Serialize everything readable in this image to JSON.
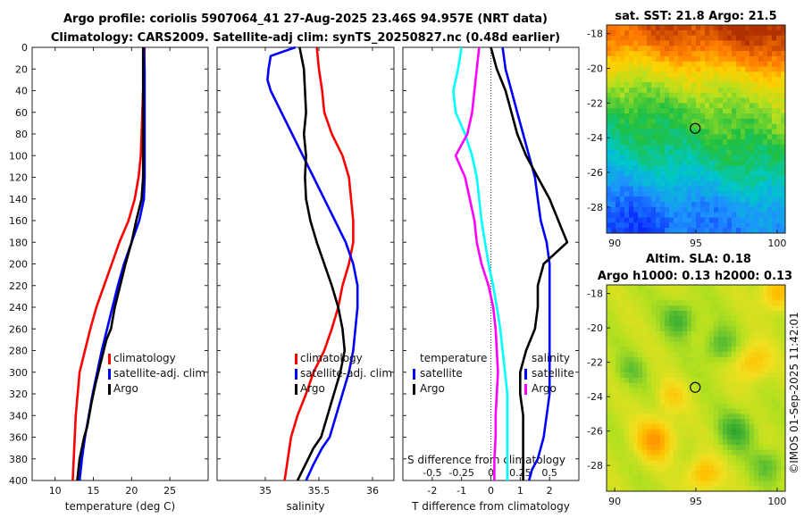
{
  "title_line1": "Argo profile: coriolis 5907064_41 27-Aug-2025 23.46S 94.957E (NRT data)",
  "title_line2": "Climatology: CARS2009. Satellite-adj clim: synTS_20250827.nc (0.48d earlier)",
  "sst_title": "sat. SST: 21.8 Argo: 21.5",
  "sla_title1": "Altim. SLA: 0.18",
  "sla_title2": "Argo h1000: 0.13 h2000: 0.13",
  "credit": "©IMOS 01-Sep-2025 11:42:01",
  "colors": {
    "climatology": "#ff0000",
    "satellite": "#0000ff",
    "argo": "#000000",
    "t_diff": "#00ffff",
    "s_diff": "#ff00ff"
  },
  "chart_data": [
    {
      "type": "line",
      "xlabel": "temperature (deg C)",
      "ylabel": "",
      "xlim": [
        7,
        30
      ],
      "ylim": [
        400,
        0
      ],
      "xticks": [
        "10",
        "15",
        "20",
        "25"
      ],
      "yticks": [
        "0",
        "20",
        "40",
        "60",
        "80",
        "100",
        "120",
        "140",
        "160",
        "180",
        "200",
        "220",
        "240",
        "260",
        "280",
        "300",
        "320",
        "340",
        "360",
        "380",
        "400"
      ],
      "legend": [
        "climatology",
        "satellite-adj. clim",
        "Argo"
      ],
      "series": [
        {
          "name": "climatology",
          "color": "#ff0000",
          "x": [
            21.7,
            21.6,
            21.5,
            21.4,
            21.3,
            21.2,
            20.9,
            20.4,
            19.6,
            18.4,
            17.4,
            16.4,
            15.4,
            14.6,
            13.9,
            13.2,
            12.7,
            12.3
          ],
          "y": [
            0,
            20,
            40,
            60,
            80,
            100,
            120,
            140,
            160,
            180,
            200,
            220,
            240,
            260,
            280,
            300,
            340,
            400
          ]
        },
        {
          "name": "satellite-adj. clim",
          "color": "#0000ff",
          "x": [
            21.6,
            21.7,
            21.7,
            21.7,
            21.7,
            21.7,
            21.7,
            21.6,
            21.0,
            20.0,
            19.0,
            18.2,
            17.5,
            16.8,
            16.1,
            15.5,
            14.9,
            14.4,
            13.9,
            13.5,
            13.2
          ],
          "y": [
            0,
            20,
            40,
            60,
            80,
            100,
            120,
            140,
            160,
            180,
            200,
            220,
            240,
            260,
            280,
            300,
            320,
            340,
            360,
            380,
            400
          ]
        },
        {
          "name": "Argo",
          "color": "#000000",
          "x": [
            21.5,
            21.5,
            21.5,
            21.5,
            21.5,
            21.5,
            21.5,
            21.3,
            20.6,
            20.0,
            19.2,
            18.5,
            17.8,
            17.3,
            16.7,
            16.0,
            15.3,
            14.7,
            14.2,
            13.8,
            13.5,
            13.2,
            12.9
          ],
          "y": [
            0,
            20,
            40,
            60,
            80,
            100,
            120,
            140,
            160,
            180,
            200,
            220,
            240,
            260,
            270,
            290,
            310,
            330,
            350,
            360,
            370,
            380,
            400
          ]
        }
      ]
    },
    {
      "type": "line",
      "xlabel": "salinity",
      "ylabel": "",
      "xlim": [
        34.55,
        36.2
      ],
      "ylim": [
        400,
        0
      ],
      "xticks": [
        "35",
        "35.5",
        "36"
      ],
      "legend": [
        "climatology",
        "satellite-adj. clim",
        "Argo"
      ],
      "series": [
        {
          "name": "climatology",
          "color": "#ff0000",
          "x": [
            35.48,
            35.5,
            35.53,
            35.55,
            35.62,
            35.72,
            35.78,
            35.8,
            35.82,
            35.82,
            35.78,
            35.72,
            35.68,
            35.62,
            35.55,
            35.45,
            35.38,
            35.3,
            35.24,
            35.18
          ],
          "y": [
            0,
            20,
            40,
            60,
            80,
            100,
            120,
            140,
            160,
            180,
            200,
            220,
            240,
            260,
            280,
            300,
            320,
            340,
            360,
            400
          ]
        },
        {
          "name": "satellite-adj. clim",
          "color": "#0000ff",
          "x": [
            35.28,
            35.05,
            35.03,
            35.02,
            35.05,
            35.15,
            35.25,
            35.35,
            35.45,
            35.55,
            35.65,
            35.75,
            35.82,
            35.86,
            35.86,
            35.84,
            35.82,
            35.78,
            35.72,
            35.66,
            35.6,
            35.53,
            35.45,
            35.38
          ],
          "y": [
            0,
            8,
            20,
            30,
            40,
            60,
            80,
            100,
            120,
            140,
            160,
            180,
            200,
            220,
            240,
            260,
            280,
            300,
            320,
            340,
            360,
            370,
            385,
            400
          ]
        },
        {
          "name": "Argo",
          "color": "#000000",
          "x": [
            35.32,
            35.36,
            35.37,
            35.38,
            35.36,
            35.38,
            35.37,
            35.38,
            35.42,
            35.48,
            35.55,
            35.62,
            35.68,
            35.72,
            35.74,
            35.7,
            35.64,
            35.58,
            35.52,
            35.45,
            35.4,
            35.35,
            35.3
          ],
          "y": [
            0,
            20,
            40,
            60,
            80,
            100,
            120,
            140,
            160,
            180,
            200,
            220,
            240,
            260,
            280,
            300,
            320,
            340,
            360,
            370,
            380,
            390,
            400
          ]
        }
      ]
    },
    {
      "type": "line",
      "xlabel": "T difference from climatology",
      "ylabel": "",
      "xlim": [
        -3,
        3
      ],
      "ylim": [
        400,
        0
      ],
      "xticks": [
        "-2",
        "-1",
        "0",
        "1",
        "2"
      ],
      "top_axis_label": "S difference from climatology",
      "top_xlim": [
        -0.75,
        0.75
      ],
      "top_xticks": [
        "-0.5",
        "-0.25",
        "0",
        "0.25",
        "0.5"
      ],
      "legend_temperature": [
        "temperature",
        "satellite",
        "Argo"
      ],
      "legend_salinity": [
        "salinity",
        "satellite",
        "Argo"
      ],
      "series": [
        {
          "name": "T satellite - clim",
          "color": "#0000ff",
          "units": "T",
          "x": [
            0.4,
            0.5,
            0.7,
            0.9,
            1.1,
            1.3,
            1.5,
            1.6,
            1.7,
            1.9,
            2.0,
            2.0,
            2.0,
            2.0,
            2.0,
            2.0,
            2.0,
            1.9,
            1.8,
            1.6,
            1.4,
            1.3
          ],
          "y": [
            0,
            20,
            40,
            60,
            80,
            100,
            120,
            140,
            160,
            180,
            200,
            220,
            240,
            260,
            280,
            300,
            320,
            340,
            360,
            380,
            390,
            400
          ]
        },
        {
          "name": "T Argo - clim",
          "color": "#000000",
          "units": "T",
          "x": [
            0.0,
            0.2,
            0.5,
            0.7,
            0.9,
            1.2,
            1.6,
            2.0,
            2.3,
            2.6,
            1.8,
            1.6,
            1.6,
            1.5,
            1.2,
            1.0,
            1.0,
            1.1,
            1.1,
            1.1,
            1.1
          ],
          "y": [
            0,
            20,
            40,
            60,
            80,
            100,
            120,
            140,
            160,
            180,
            200,
            220,
            240,
            260,
            280,
            300,
            320,
            340,
            360,
            380,
            400
          ]
        },
        {
          "name": "S satellite - clim",
          "color": "#00ffff",
          "units": "S",
          "x": [
            -0.25,
            -0.28,
            -0.32,
            -0.3,
            -0.22,
            -0.16,
            -0.12,
            -0.1,
            -0.08,
            -0.05,
            -0.02,
            0.02,
            0.05,
            0.08,
            0.1,
            0.12,
            0.14,
            0.14,
            0.14,
            0.14,
            0.14
          ],
          "y": [
            0,
            20,
            40,
            60,
            80,
            100,
            120,
            140,
            160,
            180,
            200,
            220,
            240,
            260,
            280,
            300,
            320,
            340,
            360,
            380,
            400
          ]
        },
        {
          "name": "S Argo - clim",
          "color": "#ff00ff",
          "units": "S",
          "x": [
            -0.1,
            -0.12,
            -0.14,
            -0.16,
            -0.2,
            -0.3,
            -0.22,
            -0.18,
            -0.14,
            -0.12,
            -0.08,
            -0.02,
            0.02,
            0.04,
            0.05,
            0.06,
            0.05,
            0.04,
            0.04,
            0.03,
            0.03
          ],
          "y": [
            0,
            20,
            40,
            60,
            80,
            100,
            120,
            140,
            160,
            180,
            200,
            220,
            240,
            260,
            280,
            300,
            320,
            340,
            360,
            380,
            400
          ]
        }
      ]
    },
    {
      "type": "heatmap",
      "title": "sat. SST: 21.8 Argo: 21.5",
      "xlim": [
        89.5,
        100.5
      ],
      "ylim": [
        -29.5,
        -17.5
      ],
      "xticks": [
        "90",
        "95",
        "100"
      ],
      "yticks": [
        "-18",
        "-20",
        "-22",
        "-24",
        "-26",
        "-28"
      ],
      "marker": {
        "lon": 94.957,
        "lat": -23.46
      },
      "colormap_stops": [
        "#0a2aff",
        "#1e90ff",
        "#00c8c8",
        "#20c040",
        "#b4e020",
        "#ffd000",
        "#ff7a00",
        "#b03000"
      ],
      "bands": [
        {
          "lat": -18,
          "level": 0.95
        },
        {
          "lat": -19,
          "level": 0.85
        },
        {
          "lat": -20,
          "level": 0.72
        },
        {
          "lat": -21,
          "level": 0.6
        },
        {
          "lat": -22,
          "level": 0.52
        },
        {
          "lat": -23,
          "level": 0.46
        },
        {
          "lat": -24,
          "level": 0.42
        },
        {
          "lat": -25,
          "level": 0.36
        },
        {
          "lat": -26,
          "level": 0.3
        },
        {
          "lat": -27,
          "level": 0.22
        },
        {
          "lat": -28,
          "level": 0.14
        },
        {
          "lat": -29,
          "level": 0.1
        }
      ]
    },
    {
      "type": "heatmap",
      "title": "Altim. SLA: 0.18 / Argo h1000: 0.13 h2000: 0.13",
      "xlim": [
        89.5,
        100.5
      ],
      "ylim": [
        -29.5,
        -17.5
      ],
      "xticks": [
        "90",
        "95",
        "100"
      ],
      "yticks": [
        "-18",
        "-20",
        "-22",
        "-24",
        "-26",
        "-28"
      ],
      "marker": {
        "lon": 94.957,
        "lat": -23.46
      },
      "colormap_stops": [
        "#20a030",
        "#60c030",
        "#b4e020",
        "#f0e020",
        "#ffc000",
        "#ff9000"
      ],
      "blobs": [
        {
          "lon": 92.5,
          "lat": -26.5,
          "level": 0.95,
          "r": 1.2
        },
        {
          "lon": 95.5,
          "lat": -28.5,
          "level": 0.85,
          "r": 1.0
        },
        {
          "lon": 98.5,
          "lat": -22.0,
          "level": 0.8,
          "r": 1.1
        },
        {
          "lon": 100.0,
          "lat": -18.0,
          "level": 0.85,
          "r": 1.0
        },
        {
          "lon": 94.0,
          "lat": -19.5,
          "level": 0.1,
          "r": 1.0
        },
        {
          "lon": 96.5,
          "lat": -21.0,
          "level": 0.15,
          "r": 1.0
        },
        {
          "lon": 91.0,
          "lat": -22.5,
          "level": 0.25,
          "r": 0.9
        },
        {
          "lon": 97.5,
          "lat": -26.0,
          "level": 0.1,
          "r": 1.1
        },
        {
          "lon": 99.5,
          "lat": -28.0,
          "level": 0.2,
          "r": 1.0
        },
        {
          "lon": 93.5,
          "lat": -24.0,
          "level": 0.7,
          "r": 0.9
        }
      ]
    }
  ]
}
